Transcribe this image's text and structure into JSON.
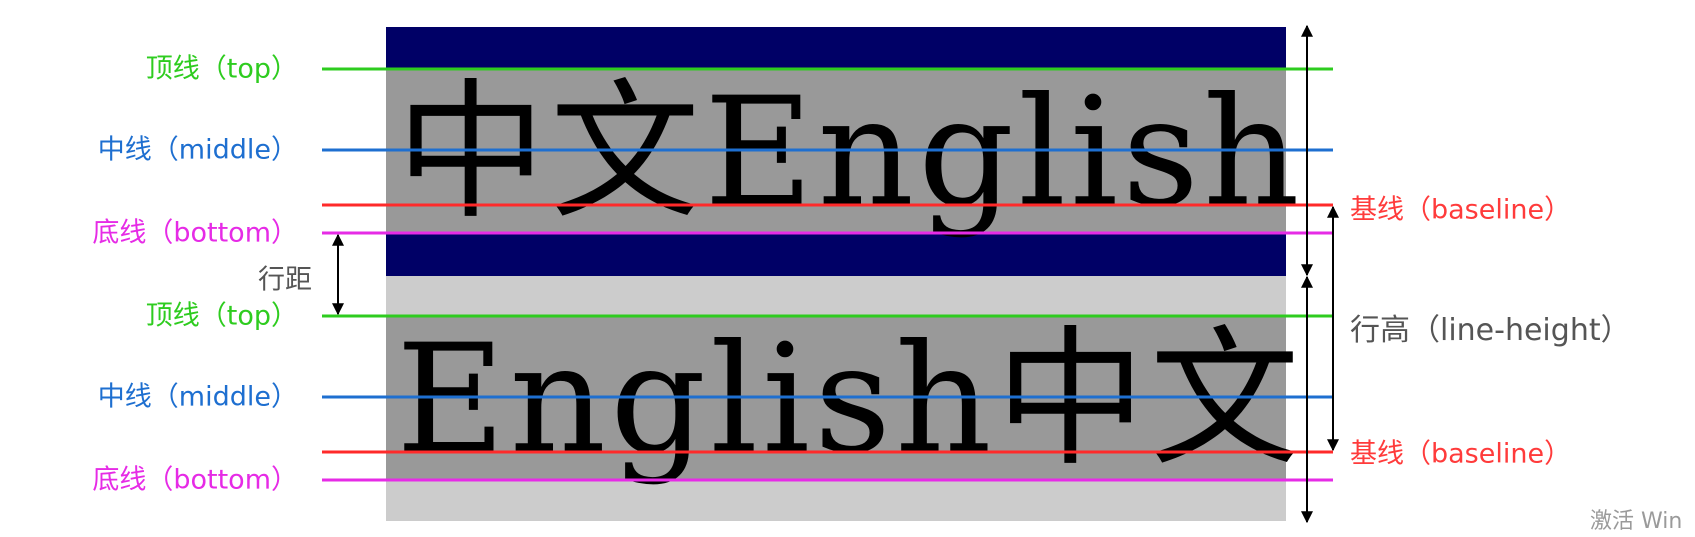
{
  "colors": {
    "top_line": "#2ecc1f",
    "middle_line": "#1e6fd0",
    "baseline": "#ff2a2a",
    "bottom_line": "#e62be6",
    "label_top": "#2ecc1f",
    "label_middle": "#1e6fd0",
    "label_baseline": "#ff3b3b",
    "label_bottom": "#e62be6",
    "label_neutral": "#555555",
    "block_dark": "#000066",
    "block_mid": "#999999",
    "block_light": "#cccccc"
  },
  "line1": {
    "sample_text": "中文English",
    "top_label": "顶线（top）",
    "middle_label": "中线（middle）",
    "baseline_label": "基线（baseline）",
    "bottom_label": "底线（bottom）"
  },
  "line2": {
    "sample_text": "English中文",
    "top_label": "顶线（top）",
    "middle_label": "中线（middle）",
    "baseline_label": "基线（baseline）",
    "bottom_label": "底线（bottom）"
  },
  "measures": {
    "leading_label": "行距",
    "line_height_label": "行高（line-height）"
  },
  "watermark": {
    "text": "激活 Win"
  }
}
